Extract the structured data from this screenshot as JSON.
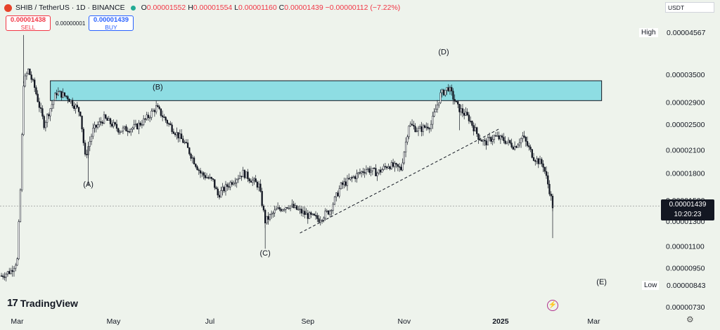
{
  "header": {
    "symbol": "SHIB / TetherUS · 1D · BINANCE",
    "ohlc": {
      "o_label": "O",
      "o": "0.00001552",
      "h_label": "H",
      "h": "0.00001554",
      "l_label": "L",
      "l": "0.00001160",
      "c_label": "C",
      "c": "0.00001439",
      "change": "−0.00000112 (−7.22%)"
    }
  },
  "trade": {
    "sell_price": "0.00001438",
    "sell_label": "SELL",
    "spread": "0.00000001",
    "buy_price": "0.00001439",
    "buy_label": "BUY"
  },
  "currency": "USDT",
  "last_price": {
    "value": "0.00001439",
    "countdown": "10:20:23"
  },
  "high_tag": {
    "label": "High",
    "value": "0.00004567"
  },
  "low_tag": {
    "label": "Low",
    "value": "0.00000843"
  },
  "logo_text": "TradingView",
  "colors": {
    "up": "#131722",
    "down": "#131722",
    "zone": "#8edde3",
    "background": "#eef3ec"
  },
  "chart_data": {
    "type": "candlestick",
    "scale": "log",
    "y_ticks": [
      "0.00003500",
      "0.00002900",
      "0.00002500",
      "0.00002100",
      "0.00001800",
      "0.00001500",
      "0.00001300",
      "0.00001100",
      "0.00000950",
      "0.00000730"
    ],
    "y_tick_values": [
      3.5e-05,
      2.9e-05,
      2.5e-05,
      2.1e-05,
      1.8e-05,
      1.5e-05,
      1.3e-05,
      1.1e-05,
      9.5e-06,
      7.3e-06
    ],
    "x_ticks": [
      "Mar",
      "May",
      "Jul",
      "Sep",
      "Nov",
      "2025",
      "Mar"
    ],
    "x_tick_dates": [
      "2024-03-01",
      "2024-05-01",
      "2024-07-01",
      "2024-09-01",
      "2024-11-01",
      "2025-01-01",
      "2025-03-01"
    ],
    "date_range": [
      "2024-02-20",
      "2025-02-03"
    ],
    "ylim": [
      7.3e-06,
      4.6e-05
    ],
    "resistance_zone": {
      "low": 2.93e-05,
      "high": 3.35e-05,
      "from": "2024-03-22",
      "to": "2025-03-06"
    },
    "trendline": {
      "from": [
        "2024-08-27",
        1.2e-05
      ],
      "to": [
        "2024-12-31",
        2.42e-05
      ]
    },
    "annotations": [
      {
        "text": "(A)",
        "date": "2024-04-15",
        "value": 1.64e-05
      },
      {
        "text": "(B)",
        "date": "2024-05-29",
        "value": 3.16e-05
      },
      {
        "text": "(C)",
        "date": "2024-08-05",
        "value": 1.03e-05
      },
      {
        "text": "(D)",
        "date": "2024-11-26",
        "value": 4e-05
      },
      {
        "text": "(E)",
        "date": "2025-03-06",
        "value": 8.5e-06
      }
    ],
    "path_points": [
      [
        "2024-02-20",
        9e-06
      ],
      [
        "2024-02-26",
        9.3e-06
      ],
      [
        "2024-03-01",
        1e-05
      ],
      [
        "2024-03-03",
        1.6e-05
      ],
      [
        "2024-03-05",
        3.3e-05
      ],
      [
        "2024-03-08",
        3.6e-05
      ],
      [
        "2024-03-12",
        3.2e-05
      ],
      [
        "2024-03-18",
        2.5e-05
      ],
      [
        "2024-03-26",
        3.1e-05
      ],
      [
        "2024-04-02",
        3e-05
      ],
      [
        "2024-04-10",
        2.7e-05
      ],
      [
        "2024-04-13",
        2e-05
      ],
      [
        "2024-04-18",
        2.4e-05
      ],
      [
        "2024-04-25",
        2.6e-05
      ],
      [
        "2024-05-05",
        2.4e-05
      ],
      [
        "2024-05-15",
        2.45e-05
      ],
      [
        "2024-05-22",
        2.6e-05
      ],
      [
        "2024-05-28",
        2.8e-05
      ],
      [
        "2024-06-05",
        2.5e-05
      ],
      [
        "2024-06-15",
        2.2e-05
      ],
      [
        "2024-06-25",
        1.8e-05
      ],
      [
        "2024-07-03",
        1.7e-05
      ],
      [
        "2024-07-06",
        1.55e-05
      ],
      [
        "2024-07-15",
        1.7e-05
      ],
      [
        "2024-07-22",
        1.8e-05
      ],
      [
        "2024-08-01",
        1.65e-05
      ],
      [
        "2024-08-05",
        1.3e-05
      ],
      [
        "2024-08-12",
        1.4e-05
      ],
      [
        "2024-08-20",
        1.45e-05
      ],
      [
        "2024-09-01",
        1.35e-05
      ],
      [
        "2024-09-08",
        1.32e-05
      ],
      [
        "2024-09-15",
        1.4e-05
      ],
      [
        "2024-09-22",
        1.65e-05
      ],
      [
        "2024-09-30",
        1.75e-05
      ],
      [
        "2024-10-08",
        1.85e-05
      ],
      [
        "2024-10-15",
        1.8e-05
      ],
      [
        "2024-10-22",
        1.9e-05
      ],
      [
        "2024-10-30",
        1.85e-05
      ],
      [
        "2024-11-04",
        2.5e-05
      ],
      [
        "2024-11-10",
        2.4e-05
      ],
      [
        "2024-11-18",
        2.5e-05
      ],
      [
        "2024-11-24",
        3.05e-05
      ],
      [
        "2024-11-29",
        3.2e-05
      ],
      [
        "2024-12-05",
        2.8e-05
      ],
      [
        "2024-12-12",
        2.6e-05
      ],
      [
        "2024-12-18",
        2.3e-05
      ],
      [
        "2024-12-22",
        2.2e-05
      ],
      [
        "2024-12-28",
        2.3e-05
      ],
      [
        "2025-01-03",
        2.25e-05
      ],
      [
        "2025-01-10",
        2.15e-05
      ],
      [
        "2025-01-15",
        2.3e-05
      ],
      [
        "2025-01-22",
        2e-05
      ],
      [
        "2025-01-28",
        1.9e-05
      ],
      [
        "2025-02-01",
        1.6e-05
      ],
      [
        "2025-02-03",
        1.44e-05
      ]
    ]
  }
}
